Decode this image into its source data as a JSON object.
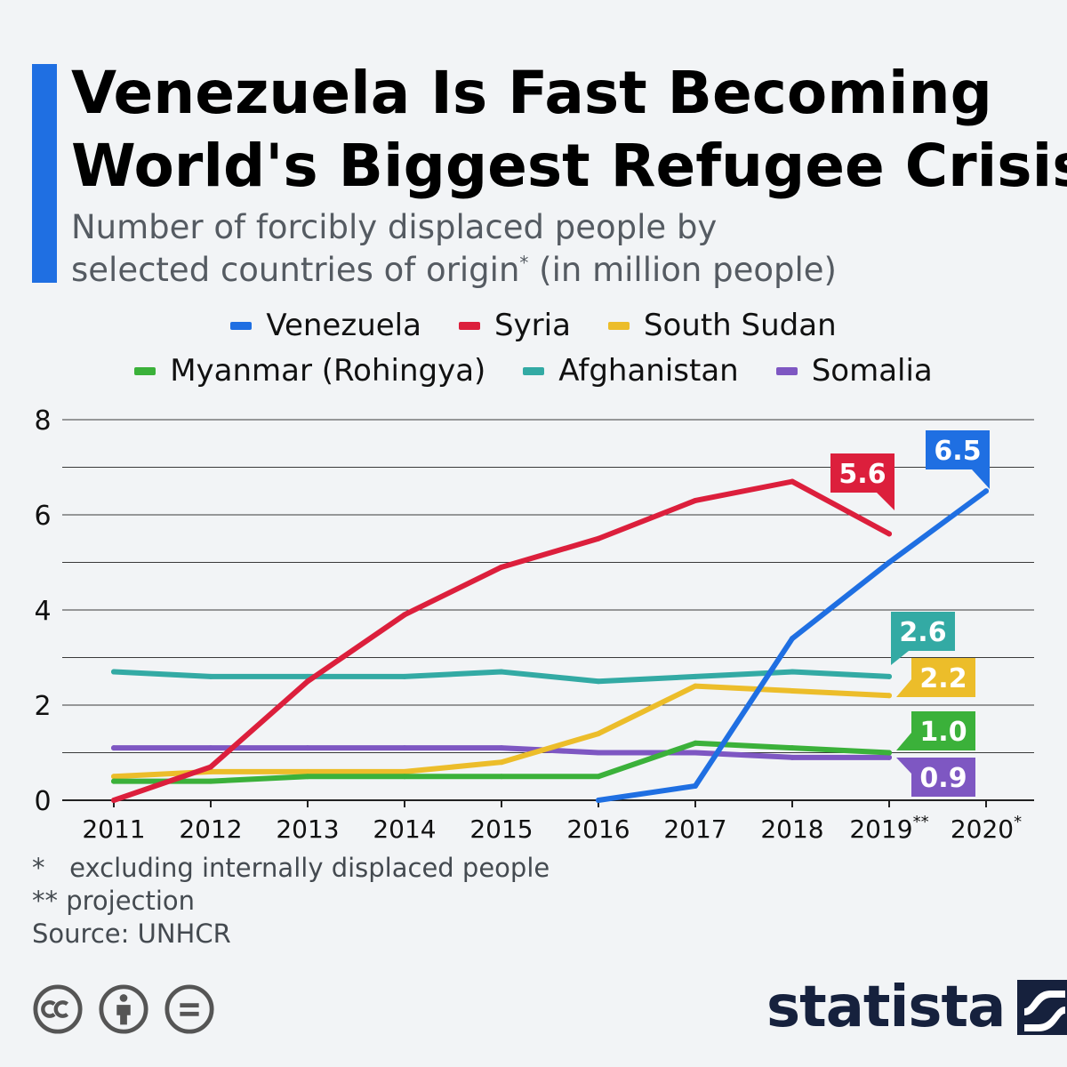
{
  "header": {
    "title_line1": "Venezuela Is Fast Becoming",
    "title_line2": "World's Biggest Refugee Crisis",
    "subtitle_line1": "Number of forcibly displaced people by",
    "subtitle_line2_pre": "selected countries of origin",
    "subtitle_line2_sup": "*",
    "subtitle_line2_post": " (in million people)"
  },
  "footer": {
    "note1": "*   excluding internally displaced people",
    "note2": "** projection",
    "source": "Source: UNHCR",
    "brand": "statista"
  },
  "icons": [
    "cc-icon",
    "attribution-icon",
    "no-derivatives-icon",
    "statista-logo-icon"
  ],
  "chart_data": {
    "type": "line",
    "categories": [
      "2011",
      "2012",
      "2013",
      "2014",
      "2015",
      "2016",
      "2017",
      "2018",
      "2019**",
      "2020*"
    ],
    "ylim": [
      0,
      8
    ],
    "yticks": [
      0,
      2,
      4,
      6,
      8
    ],
    "grid": true,
    "legend_position": "top",
    "series": [
      {
        "name": "Venezuela",
        "color": "#1f6fe2",
        "values": [
          null,
          null,
          null,
          null,
          null,
          0.0,
          0.3,
          3.4,
          5.0,
          6.5
        ],
        "end_label": "6.5"
      },
      {
        "name": "Syria",
        "color": "#dc1f3c",
        "values": [
          0.0,
          0.7,
          2.5,
          3.9,
          4.9,
          5.5,
          6.3,
          6.7,
          5.6,
          null
        ],
        "end_label": "5.6"
      },
      {
        "name": "South Sudan",
        "color": "#ecbd2a",
        "values": [
          0.5,
          0.6,
          0.6,
          0.6,
          0.8,
          1.4,
          2.4,
          2.3,
          2.2,
          null
        ],
        "end_label": "2.2"
      },
      {
        "name": "Myanmar (Rohingya)",
        "color": "#3bb13a",
        "values": [
          0.4,
          0.4,
          0.5,
          0.5,
          0.5,
          0.5,
          1.2,
          1.1,
          1.0,
          null
        ],
        "end_label": "1.0"
      },
      {
        "name": "Afghanistan",
        "color": "#33aaa4",
        "values": [
          2.7,
          2.6,
          2.6,
          2.6,
          2.7,
          2.5,
          2.6,
          2.7,
          2.6,
          null
        ],
        "end_label": "2.6"
      },
      {
        "name": "Somalia",
        "color": "#7e57c2",
        "values": [
          1.1,
          1.1,
          1.1,
          1.1,
          1.1,
          1.0,
          1.0,
          0.9,
          0.9,
          null
        ],
        "end_label": "0.9"
      }
    ]
  }
}
